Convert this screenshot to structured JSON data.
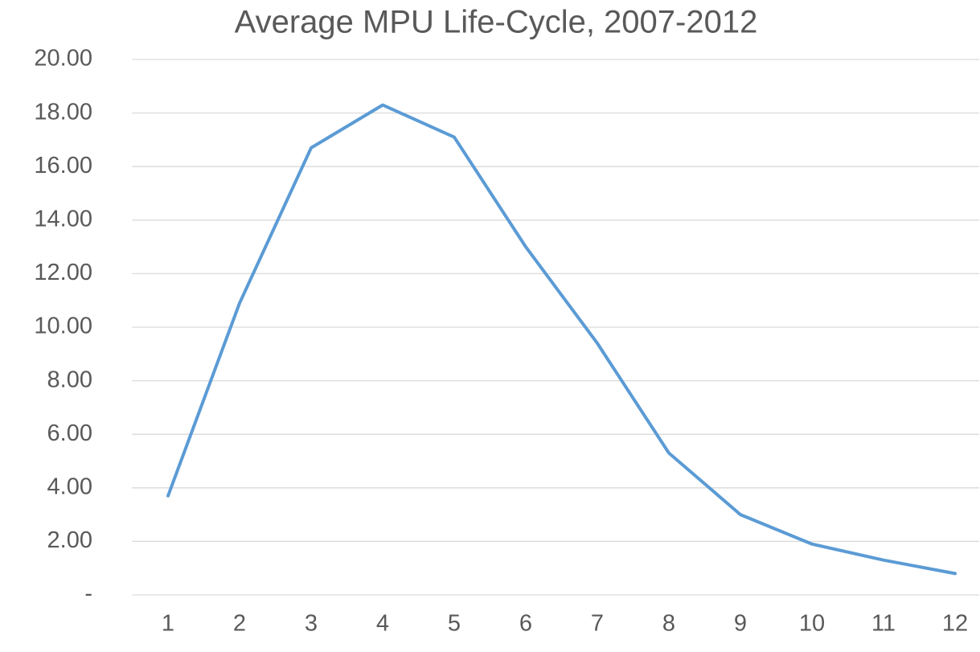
{
  "chart_data": {
    "type": "line",
    "title": "Average MPU Life-Cycle, 2007-2012",
    "categories": [
      "1",
      "2",
      "3",
      "4",
      "5",
      "6",
      "7",
      "8",
      "9",
      "10",
      "11",
      "12"
    ],
    "series": [
      {
        "name": "Average MPU Life-Cycle",
        "color": "#5b9bd5",
        "values": [
          3.7,
          10.9,
          16.7,
          18.3,
          17.1,
          13.0,
          9.4,
          5.3,
          3.0,
          1.9,
          1.3,
          0.8
        ]
      }
    ],
    "ylim": [
      0,
      20
    ],
    "yticks": [
      {
        "value": 0,
        "label": "-"
      },
      {
        "value": 2,
        "label": "2.00"
      },
      {
        "value": 4,
        "label": "4.00"
      },
      {
        "value": 6,
        "label": "6.00"
      },
      {
        "value": 8,
        "label": "8.00"
      },
      {
        "value": 10,
        "label": "10.00"
      },
      {
        "value": 12,
        "label": "12.00"
      },
      {
        "value": 14,
        "label": "14.00"
      },
      {
        "value": 16,
        "label": "16.00"
      },
      {
        "value": 18,
        "label": "18.00"
      },
      {
        "value": 20,
        "label": "20.00"
      }
    ],
    "grid": true
  }
}
